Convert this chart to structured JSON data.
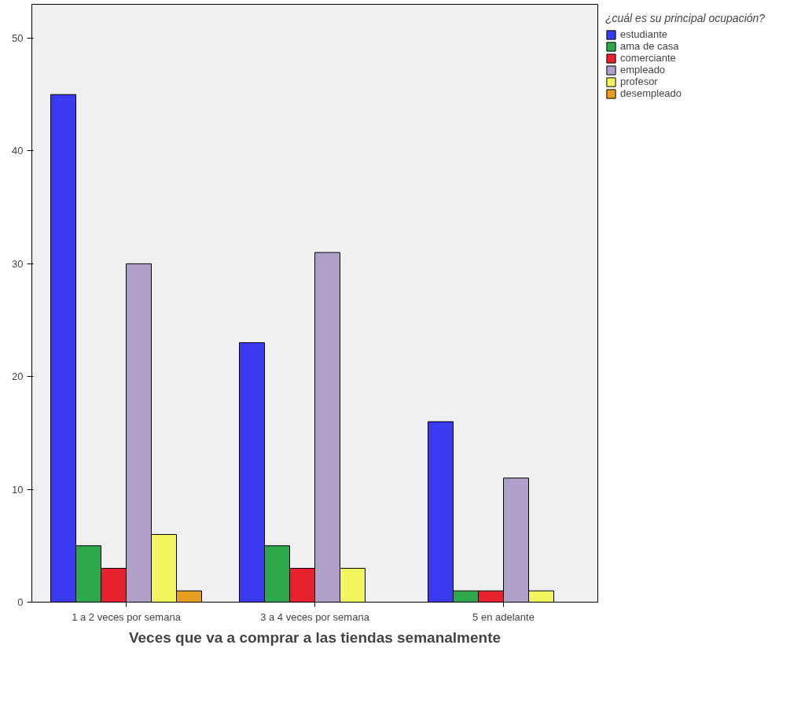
{
  "chart_data": {
    "type": "bar",
    "xlabel": "Veces que va a comprar a las tiendas semanalmente",
    "legend_title": "¿cuál es su principal ocupación?",
    "categories": [
      "1 a 2 veces por semana",
      "3 a 4 veces por semana",
      "5 en adelante"
    ],
    "series": [
      {
        "name": "estudiante",
        "color": "#3a3af0",
        "values": [
          45,
          23,
          16
        ]
      },
      {
        "name": "ama de casa",
        "color": "#2ea84a",
        "values": [
          5,
          5,
          1
        ]
      },
      {
        "name": "comerciante",
        "color": "#e8222c",
        "values": [
          3,
          3,
          1
        ]
      },
      {
        "name": "empleado",
        "color": "#b09fc8",
        "values": [
          30,
          31,
          11
        ]
      },
      {
        "name": "profesor",
        "color": "#f4f45c",
        "values": [
          6,
          3,
          1
        ]
      },
      {
        "name": "desempleado",
        "color": "#e89e1e",
        "values": [
          1,
          null,
          null
        ]
      }
    ],
    "ylim": [
      0,
      53
    ],
    "yticks": [
      0,
      10,
      20,
      30,
      40,
      50
    ],
    "grid": false,
    "legend": "right"
  }
}
